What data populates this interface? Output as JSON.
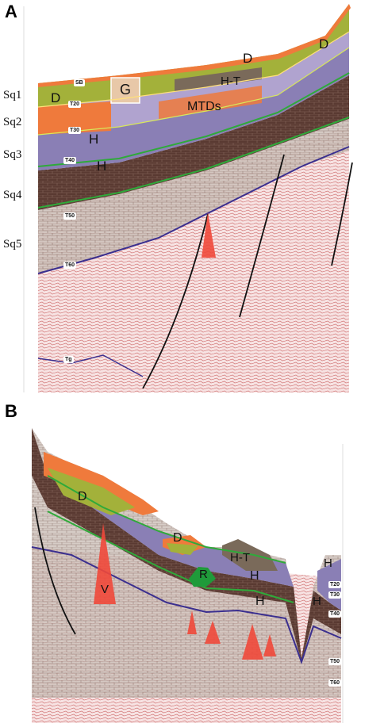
{
  "panels": [
    {
      "letter": "A"
    },
    {
      "letter": "B"
    }
  ],
  "sequences": [
    "Sq1",
    "Sq2",
    "Sq3",
    "Sq4",
    "Sq5"
  ],
  "panelA": {
    "units": {
      "d1": "D",
      "d2": "D",
      "d3": "D",
      "g": "G",
      "ht": "H-T",
      "mtds": "MTDs",
      "h1": "H",
      "h2": "H"
    },
    "horizons": {
      "sb": "SB",
      "t20": "T20",
      "t30": "T30",
      "t40": "T40",
      "t50": "T50",
      "t60": "T60",
      "tg": "Tg"
    }
  },
  "panelB": {
    "units": {
      "d1": "D",
      "d2": "D",
      "ht": "H-T",
      "r": "R",
      "v": "V",
      "h1": "H",
      "h2": "H",
      "h3": "H",
      "h4": "H"
    },
    "horizons": {
      "t20": "T20",
      "t30": "T30",
      "t40": "T40",
      "t50": "T50",
      "t60": "T60"
    }
  },
  "colors": {
    "orange": "#ef7a3c",
    "olive": "#a3b13a",
    "purple": "#8a7fb5",
    "brown": "#5a3a32",
    "red_volcano": "#f0483a",
    "green_reef": "#1f9b3a",
    "horizon_green": "#2faa3a",
    "horizon_purple": "#3b2f8f"
  }
}
